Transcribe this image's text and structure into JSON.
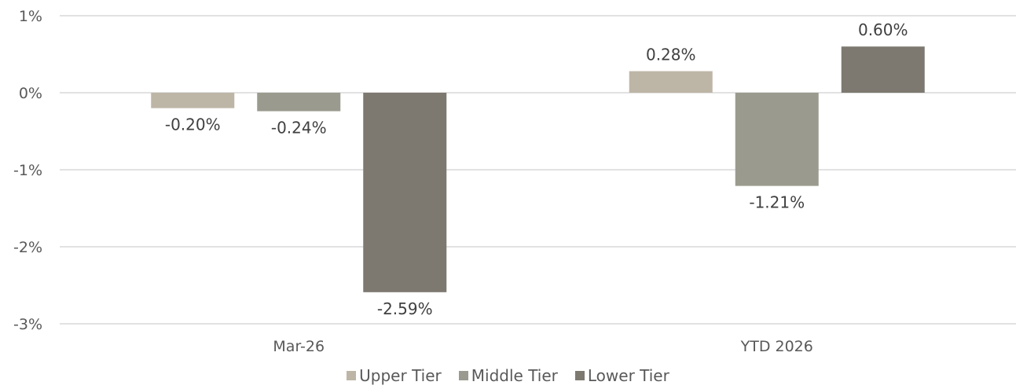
{
  "chart_data": {
    "type": "bar",
    "categories": [
      "Mar-26",
      "YTD 2026"
    ],
    "series": [
      {
        "name": "Upper Tier",
        "color": "#bdb5a6",
        "values": [
          -0.2,
          0.28
        ],
        "labels": [
          "-0.20%",
          "0.28%"
        ]
      },
      {
        "name": "Middle Tier",
        "color": "#9a9a8e",
        "values": [
          -0.24,
          -1.21
        ],
        "labels": [
          "-0.24%",
          "-1.21%"
        ]
      },
      {
        "name": "Lower Tier",
        "color": "#7d7970",
        "values": [
          -2.59,
          0.6
        ],
        "labels": [
          "-2.59%",
          "0.60%"
        ]
      }
    ],
    "ylim": [
      -3,
      1
    ],
    "yticks": [
      1,
      0,
      -1,
      -2,
      -3
    ],
    "ytick_labels": [
      "1%",
      "0%",
      "-1%",
      "-2%",
      "-3%"
    ],
    "grid": true,
    "legend_position": "bottom"
  }
}
